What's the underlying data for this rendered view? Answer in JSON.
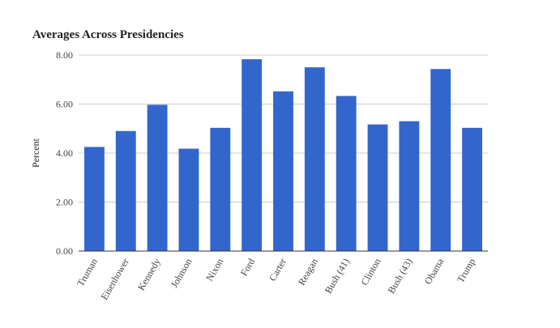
{
  "chart_data": {
    "type": "bar",
    "title": "Averages Across Presidencies",
    "xlabel": "",
    "ylabel": "Percent",
    "categories": [
      "Truman",
      "Eisenhower",
      "Kennedy",
      "Johnson",
      "Nixon",
      "Ford",
      "Carter",
      "Reagan",
      "Bush (41)",
      "Clinton",
      "Bush (43)",
      "Obama",
      "Trump"
    ],
    "values": [
      4.25,
      4.9,
      5.97,
      4.18,
      5.03,
      7.83,
      6.52,
      7.5,
      6.33,
      5.17,
      5.3,
      7.43,
      5.03
    ],
    "yticks": [
      "0.00",
      "2.00",
      "4.00",
      "6.00",
      "8.00"
    ],
    "ylim": [
      0,
      8
    ],
    "grid": true,
    "legend": "none",
    "bar_color": "#3366cc",
    "grid_color": "#cccccc",
    "axis_color": "#333333"
  }
}
